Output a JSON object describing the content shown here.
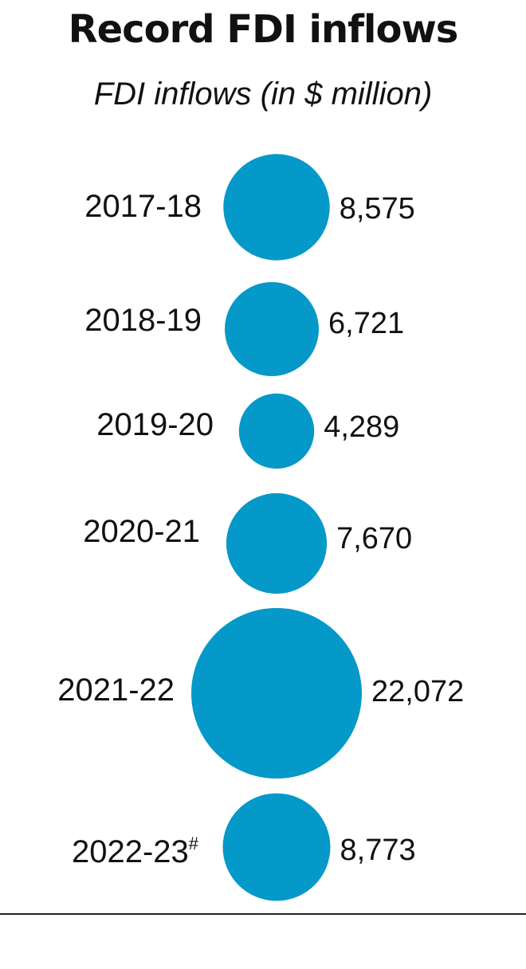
{
  "chart_data": {
    "type": "bubble",
    "title": "Record FDI inflows",
    "subtitle": "FDI inflows (in $ million)",
    "categories": [
      "2017-18",
      "2018-19",
      "2019-20",
      "2020-21",
      "2021-22",
      "2022-23"
    ],
    "category_footnote_marks": [
      "",
      "",
      "",
      "",
      "",
      "#"
    ],
    "values": [
      8575,
      6721,
      4289,
      7670,
      22072,
      8773
    ],
    "value_labels": [
      "8,575",
      "6,721",
      "4,289",
      "7,670",
      "22,072",
      "8,773"
    ],
    "series": [
      {
        "values": [
          8575,
          6721,
          4289,
          7670,
          22072,
          8773
        ]
      }
    ],
    "bubble_color": "#0599c9",
    "text_color": "#111111",
    "baseline_color": "#222222"
  }
}
